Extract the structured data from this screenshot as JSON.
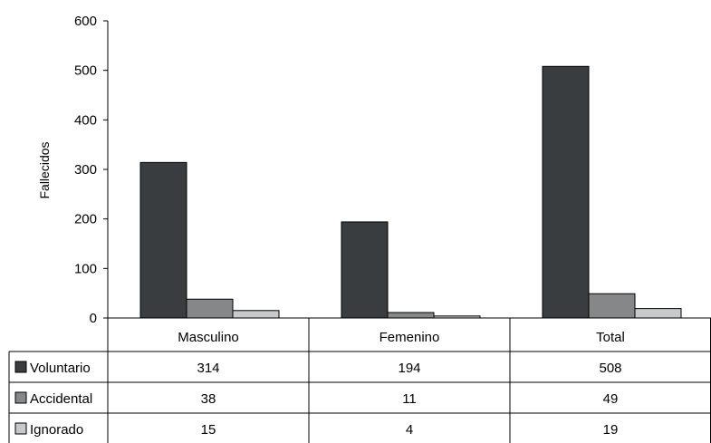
{
  "chart_data": {
    "type": "bar",
    "title": "",
    "xlabel": "",
    "ylabel": "Fallecidos",
    "ylim": [
      0,
      600
    ],
    "yticks": [
      0,
      100,
      200,
      300,
      400,
      500,
      600
    ],
    "categories": [
      "Masculino",
      "Femenino",
      "Total"
    ],
    "series": [
      {
        "name": "Voluntario",
        "color": "#3a3d3f",
        "values": [
          314,
          194,
          508
        ]
      },
      {
        "name": "Accidental",
        "color": "#858789",
        "values": [
          38,
          11,
          49
        ]
      },
      {
        "name": "Ignorado",
        "color": "#c8c9cb",
        "values": [
          15,
          4,
          19
        ]
      }
    ],
    "value_labels": [
      [
        "314",
        "194",
        "508"
      ],
      [
        "38",
        "11",
        "49"
      ],
      [
        "15",
        "4",
        "19"
      ]
    ],
    "legend": "data-table-left",
    "grid": false
  }
}
